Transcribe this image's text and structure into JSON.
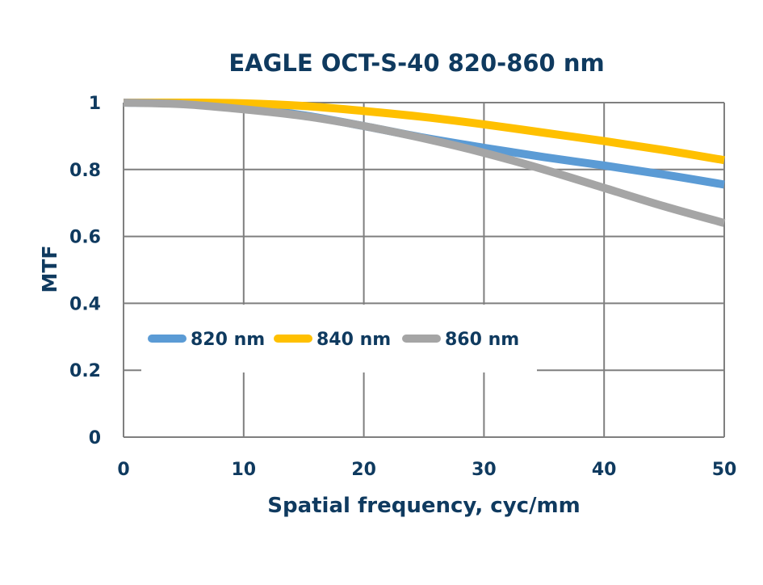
{
  "chart_data": {
    "type": "line",
    "title": "EAGLE OCT-S-40 820-860 nm",
    "xlabel": "Spatial frequency, cyc/mm",
    "ylabel": "MTF",
    "xlim": [
      0,
      50
    ],
    "ylim": [
      0,
      1
    ],
    "x_ticks": [
      "0",
      "10",
      "20",
      "30",
      "40",
      "50"
    ],
    "y_ticks": [
      "0",
      "0.2",
      "0.4",
      "0.6",
      "0.8",
      "1"
    ],
    "grid": true,
    "legend_position": "center-left",
    "x": [
      0,
      5,
      10,
      15,
      20,
      25,
      30,
      35,
      40,
      45,
      50
    ],
    "series": [
      {
        "name": "820 nm",
        "color": "#5b9bd5",
        "values": [
          1.0,
          0.997,
          0.985,
          0.962,
          0.93,
          0.895,
          0.865,
          0.837,
          0.812,
          0.785,
          0.755
        ]
      },
      {
        "name": "840 nm",
        "color": "#ffc000",
        "values": [
          1.0,
          1.0,
          0.998,
          0.99,
          0.975,
          0.957,
          0.935,
          0.91,
          0.885,
          0.858,
          0.828
        ]
      },
      {
        "name": "860 nm",
        "color": "#a5a5a5",
        "values": [
          1.0,
          0.995,
          0.98,
          0.96,
          0.93,
          0.893,
          0.85,
          0.8,
          0.745,
          0.69,
          0.64
        ]
      }
    ]
  }
}
